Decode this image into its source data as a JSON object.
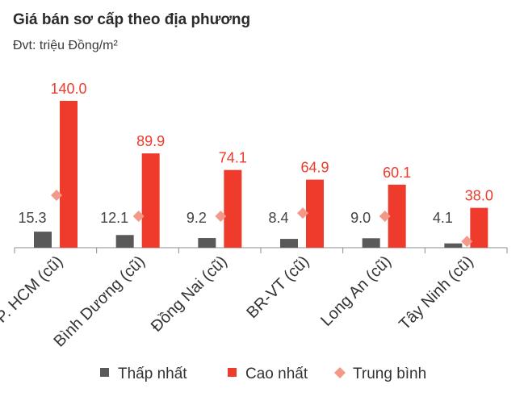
{
  "chart_data": {
    "type": "bar",
    "title": "Giá bán sơ cấp theo địa phương",
    "subtitle": "Đvt: triệu Đồng/m²",
    "xlabel": "",
    "ylabel": "",
    "categories": [
      "TP. HCM (cũ)",
      "Bình Dương (cũ)",
      "Đồng Nai (cũ)",
      "BR-VT (cũ)",
      "Long An (cũ)",
      "Tây Ninh (cũ)"
    ],
    "series": [
      {
        "name": "Thấp nhất",
        "values": [
          15.3,
          12.1,
          9.2,
          8.4,
          9.0,
          4.1
        ],
        "color": "#595959",
        "label_color": "#444444"
      },
      {
        "name": "Cao nhất",
        "values": [
          140.0,
          89.9,
          74.1,
          64.9,
          60.1,
          38.0
        ],
        "color": "#ee3b2b",
        "label_color": "#ee3b2b"
      },
      {
        "name": "Trung bình",
        "values": [
          50,
          30,
          30,
          33,
          30,
          6
        ],
        "color": "#f4998a",
        "marker": "diamond"
      }
    ],
    "labels_low": [
      "15.3",
      "12.1",
      "9.2",
      "8.4",
      "9.0",
      "4.1"
    ],
    "labels_high": [
      "140.0",
      "89.9",
      "74.1",
      "64.9",
      "60.1",
      "38.0"
    ],
    "ylim": [
      0,
      140
    ],
    "grid": false,
    "legend_position": "bottom"
  }
}
